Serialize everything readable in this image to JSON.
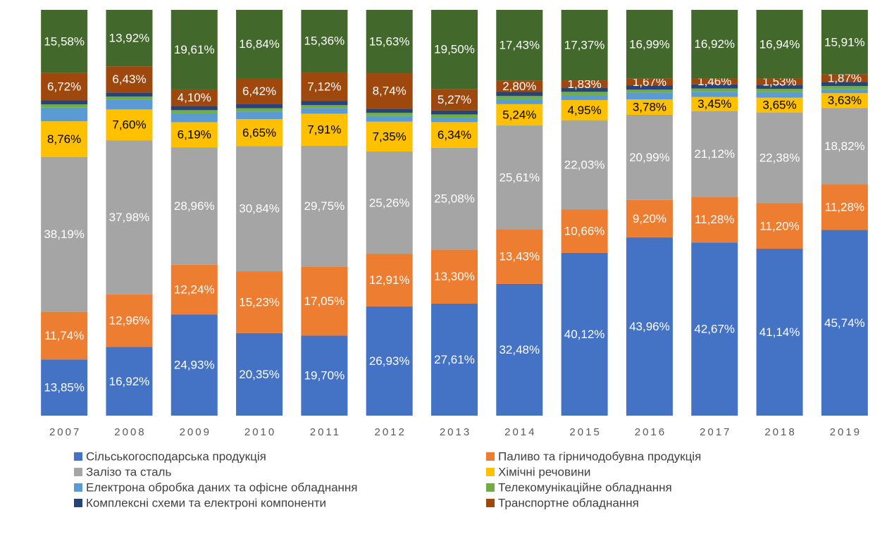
{
  "chart_data": {
    "type": "stacked_bar_100",
    "categories": [
      "2007",
      "2008",
      "2009",
      "2010",
      "2011",
      "2012",
      "2013",
      "2014",
      "2015",
      "2016",
      "2017",
      "2018",
      "2019"
    ],
    "ylim": [
      0,
      100
    ],
    "series": [
      {
        "name": "Сільськогосподарська продукція",
        "color": "#4472c4",
        "values": [
          13.85,
          16.92,
          24.93,
          20.35,
          19.7,
          26.93,
          27.61,
          32.48,
          40.12,
          43.96,
          42.67,
          41.14,
          45.74
        ],
        "value_labels": [
          "13,85%",
          "16,92%",
          "24,93%",
          "20,35%",
          "19,70%",
          "26,93%",
          "27,61%",
          "32,48%",
          "40,12%",
          "43,96%",
          "42,67%",
          "41,14%",
          "45,74%"
        ]
      },
      {
        "name": "Паливо та гірничодобувна продукція",
        "color": "#ed7d31",
        "values": [
          11.74,
          12.96,
          12.24,
          15.23,
          17.05,
          12.91,
          13.3,
          13.43,
          10.66,
          9.2,
          11.28,
          11.2,
          11.28
        ],
        "value_labels": [
          "11,74%",
          "12,96%",
          "12,24%",
          "15,23%",
          "17,05%",
          "12,91%",
          "13,30%",
          "13,43%",
          "10,66%",
          "9,20%",
          "11,28%",
          "11,20%",
          "11,28%"
        ]
      },
      {
        "name": "Залізо та сталь",
        "color": "#a5a5a5",
        "values": [
          38.19,
          37.98,
          28.96,
          30.84,
          29.75,
          25.26,
          25.08,
          25.61,
          22.03,
          20.99,
          21.12,
          22.38,
          18.82
        ],
        "value_labels": [
          "38,19%",
          "37,98%",
          "28,96%",
          "30,84%",
          "29,75%",
          "25,26%",
          "25,08%",
          "25,61%",
          "22,03%",
          "20,99%",
          "21,12%",
          "22,38%",
          "18,82%"
        ]
      },
      {
        "name": "Хімічні речовини",
        "color": "#ffc000",
        "values": [
          8.76,
          7.6,
          6.19,
          6.65,
          7.91,
          7.35,
          6.34,
          5.24,
          4.95,
          3.78,
          3.45,
          3.65,
          3.63
        ],
        "value_labels": [
          "8,76%",
          "7,60%",
          "6,19%",
          "6,65%",
          "7,91%",
          "7,35%",
          "6,34%",
          "5,24%",
          "4,95%",
          "3,78%",
          "3,45%",
          "3,65%",
          "3,63%"
        ]
      },
      {
        "name": "Електрона обробка даних та офісне обладнання",
        "color": "#5b9bd5",
        "values": [
          3.36,
          2.39,
          2.17,
          1.87,
          1.31,
          1.38,
          1.1,
          1.21,
          1.24,
          1.61,
          1.3,
          1.36,
          0.95
        ]
      },
      {
        "name": "Телекомунікаційне обладнання",
        "color": "#70ad47",
        "values": [
          0.8,
          0.8,
          0.8,
          0.8,
          0.8,
          0.8,
          0.8,
          0.8,
          0.8,
          0.8,
          0.8,
          0.8,
          0.8
        ]
      },
      {
        "name": "Комплексні схеми та електроні компоненти",
        "color": "#264478",
        "values": [
          1.0,
          1.0,
          1.0,
          1.0,
          1.0,
          1.0,
          1.0,
          1.0,
          1.0,
          1.0,
          1.0,
          1.0,
          1.0
        ]
      },
      {
        "name": "Транспортне обладнання",
        "color": "#9e480e",
        "values": [
          6.72,
          6.43,
          4.1,
          6.42,
          7.12,
          8.74,
          5.27,
          2.8,
          1.83,
          1.67,
          1.46,
          1.53,
          1.87
        ],
        "value_labels": [
          "6,72%",
          "6,43%",
          "4,10%",
          "6,42%",
          "7,12%",
          "8,74%",
          "5,27%",
          "2,80%",
          "1,83%",
          "1,67%",
          "1,46%",
          "1,53%",
          "1,87%"
        ]
      },
      {
        "color": "#43682b",
        "values": [
          15.58,
          13.92,
          19.61,
          16.84,
          15.36,
          15.63,
          19.5,
          17.43,
          17.37,
          16.99,
          16.92,
          16.94,
          15.91
        ],
        "value_labels": [
          "15,58%",
          "13,92%",
          "19,61%",
          "16,84%",
          "15,36%",
          "15,63%",
          "19,50%",
          "17,43%",
          "17,37%",
          "16,99%",
          "16,92%",
          "16,94%",
          "15,91%"
        ]
      }
    ]
  }
}
